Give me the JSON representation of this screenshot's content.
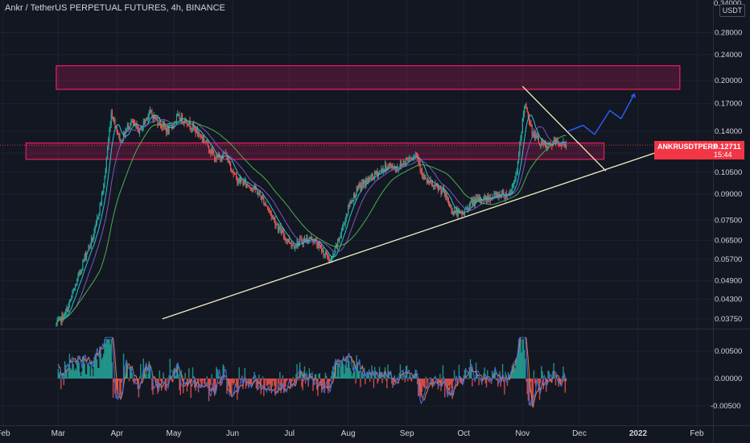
{
  "title": "Ankr / TetherUS PERPETUAL FUTURES, 4h, BINANCE",
  "currency_badge": "USDT",
  "last_price_tag": {
    "symbol": "ANKRUSDTPERP",
    "price": "0.12711",
    "countdown": "15:44",
    "color": "#f23645"
  },
  "colors": {
    "background": "#131722",
    "grid": "#1e2230",
    "bull": "#26a69a",
    "bear": "#ef5350",
    "zone": "#e91e63",
    "trendline": "#f5eec2",
    "projection": "#2962ff",
    "ma_fast": "#26c6da",
    "ma_mid": "#7e57c2",
    "ma_slow": "#4caf50",
    "osc_blue": "#3f6ad8",
    "osc_orange": "#d47a4a"
  },
  "chart_data": [
    {
      "type": "line",
      "panel": "price",
      "ylabel": "",
      "scale": "log",
      "ylim": [
        0.0355,
        0.31
      ],
      "y_ticks": [
        "0.28000",
        "0.24000",
        "0.20000",
        "0.17000",
        "0.14000",
        "0.12000",
        "0.10500",
        "0.09000",
        "0.07500",
        "0.06500",
        "0.05700",
        "0.04900",
        "0.04300",
        "0.03750"
      ],
      "x_ticks": [
        "Feb",
        "Mar",
        "Apr",
        "May",
        "Jun",
        "Jul",
        "Aug",
        "Sep",
        "Oct",
        "Nov",
        "Dec",
        "2022",
        "Feb"
      ],
      "top_partial_tick": "0.34000",
      "series": [
        {
          "key": "close",
          "x": [
            "2021-02-28",
            "2021-03-05",
            "2021-03-10",
            "2021-03-15",
            "2021-03-20",
            "2021-03-25",
            "2021-03-29",
            "2021-04-03",
            "2021-04-08",
            "2021-04-13",
            "2021-04-18",
            "2021-04-23",
            "2021-04-28",
            "2021-05-03",
            "2021-05-08",
            "2021-05-13",
            "2021-05-18",
            "2021-05-23",
            "2021-05-28",
            "2021-06-03",
            "2021-06-08",
            "2021-06-13",
            "2021-06-18",
            "2021-06-23",
            "2021-06-28",
            "2021-07-03",
            "2021-07-08",
            "2021-07-13",
            "2021-07-18",
            "2021-07-23",
            "2021-07-28",
            "2021-08-02",
            "2021-08-07",
            "2021-08-12",
            "2021-08-17",
            "2021-08-22",
            "2021-08-27",
            "2021-09-01",
            "2021-09-06",
            "2021-09-10",
            "2021-09-15",
            "2021-09-20",
            "2021-09-25",
            "2021-09-30",
            "2021-10-05",
            "2021-10-10",
            "2021-10-15",
            "2021-10-20",
            "2021-10-25",
            "2021-10-29",
            "2021-11-02",
            "2021-11-06",
            "2021-11-10",
            "2021-11-14",
            "2021-11-18",
            "2021-11-22",
            "2021-11-24"
          ],
          "y": [
            0.036,
            0.039,
            0.047,
            0.058,
            0.068,
            0.095,
            0.16,
            0.13,
            0.15,
            0.14,
            0.16,
            0.15,
            0.14,
            0.155,
            0.15,
            0.14,
            0.13,
            0.115,
            0.12,
            0.1,
            0.097,
            0.093,
            0.085,
            0.075,
            0.067,
            0.063,
            0.065,
            0.066,
            0.061,
            0.056,
            0.068,
            0.085,
            0.095,
            0.1,
            0.105,
            0.11,
            0.108,
            0.115,
            0.12,
            0.1,
            0.095,
            0.092,
            0.08,
            0.078,
            0.085,
            0.087,
            0.088,
            0.09,
            0.09,
            0.105,
            0.17,
            0.14,
            0.13,
            0.125,
            0.13,
            0.128,
            0.127
          ]
        }
      ],
      "annotations": [
        {
          "type": "zone",
          "label": "resistance zone",
          "y_range": [
            0.188,
            0.222
          ],
          "x_range": [
            "2021-02-28",
            "2022-01-23"
          ]
        },
        {
          "type": "zone",
          "label": "support zone",
          "y_range": [
            0.115,
            0.129
          ],
          "x_range": [
            "2021-02-12",
            "2021-12-14"
          ]
        },
        {
          "type": "trendline",
          "label": "rising support",
          "from": [
            "2021-04-25",
            0.0375
          ],
          "to": [
            "2022-01-22",
            0.127
          ]
        },
        {
          "type": "trendline",
          "label": "falling resistance",
          "from": [
            "2021-11-01",
            0.192
          ],
          "to": [
            "2021-12-15",
            0.106
          ]
        },
        {
          "type": "projection",
          "points": [
            [
              "2021-11-25",
              0.14
            ],
            [
              "2021-12-03",
              0.146
            ],
            [
              "2021-12-09",
              0.137
            ],
            [
              "2021-12-17",
              0.162
            ],
            [
              "2021-12-23",
              0.153
            ],
            [
              "2021-12-30",
              0.182
            ]
          ]
        }
      ]
    },
    {
      "type": "bar",
      "panel": "oscillator",
      "ylim": [
        -0.0075,
        0.0075
      ],
      "y_ticks": [
        "0.00500",
        "0.00000",
        "-0.00500"
      ]
    }
  ]
}
